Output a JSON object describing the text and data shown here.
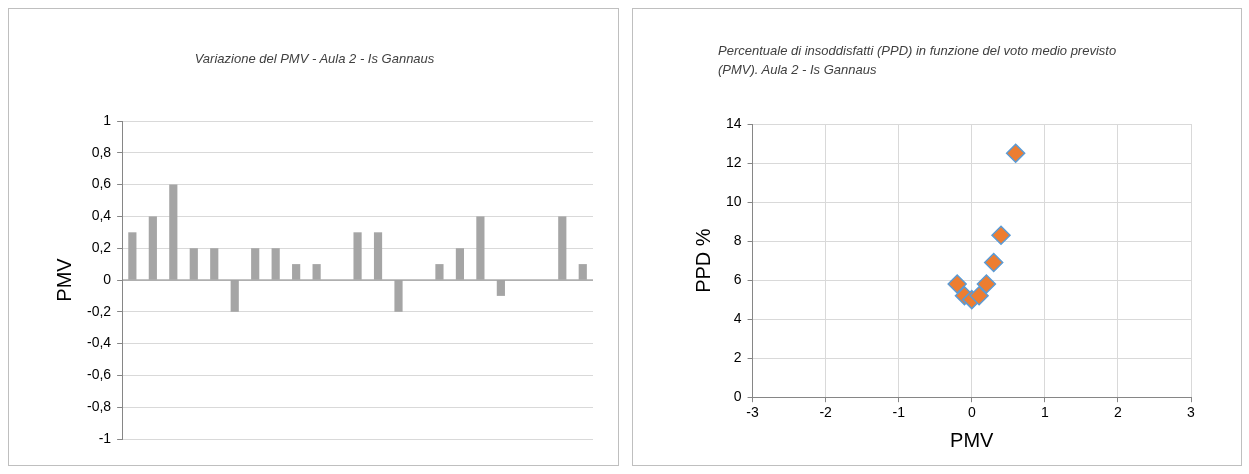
{
  "chart_data": [
    {
      "type": "bar",
      "title": "Variazione del PMV - Aula 2 - Is Gannaus",
      "ylabel": "PMV",
      "categories": [
        null,
        null,
        null,
        null,
        null,
        null,
        null,
        null,
        null,
        null,
        null,
        null,
        null,
        null,
        null,
        null,
        null,
        null,
        null,
        null,
        null,
        null,
        null
      ],
      "values": [
        0.3,
        0.4,
        0.6,
        0.2,
        0.2,
        -0.2,
        0.2,
        0.2,
        0.1,
        0.1,
        0,
        0.3,
        0.3,
        -0.2,
        0,
        0.1,
        0.2,
        0.4,
        -0.1,
        0,
        0,
        0.4,
        0.1
      ],
      "color": "#a5a5a5",
      "ylim": [
        -1,
        1
      ],
      "yticks": [
        {
          "value": -1,
          "label": "-1"
        },
        {
          "value": -0.8,
          "label": "-0,8"
        },
        {
          "value": -0.6,
          "label": "-0,6"
        },
        {
          "value": -0.4,
          "label": "-0,4"
        },
        {
          "value": -0.2,
          "label": "-0,2"
        },
        {
          "value": 0,
          "label": "0"
        },
        {
          "value": 0.2,
          "label": "0,2"
        },
        {
          "value": 0.4,
          "label": "0,4"
        },
        {
          "value": 0.6,
          "label": "0,6"
        },
        {
          "value": 0.8,
          "label": "0,8"
        },
        {
          "value": 1,
          "label": "1"
        }
      ],
      "grid": "y",
      "tick_labels": "y",
      "legend": false
    },
    {
      "type": "scatter",
      "title": "Percentuale di insoddisfatti (PPD) in funzione del voto medio previsto (PMV). Aula 2 - Is Gannaus",
      "xlabel": "PMV",
      "ylabel": "PPD %",
      "x": [
        -0.2,
        -0.1,
        0,
        0.1,
        0.2,
        0.3,
        0.4,
        0.6
      ],
      "values": [
        5.8,
        5.2,
        5.0,
        5.2,
        5.8,
        6.9,
        8.3,
        12.5
      ],
      "color": "#ed7d31",
      "marker": "diamond",
      "xlim": [
        -3,
        3
      ],
      "xticks": [
        -3,
        -2,
        -1,
        0,
        1,
        2,
        3
      ],
      "ylim": [
        0,
        14
      ],
      "yticks": [
        0,
        2,
        4,
        6,
        8,
        10,
        12,
        14
      ],
      "grid": true,
      "legend": false
    }
  ]
}
